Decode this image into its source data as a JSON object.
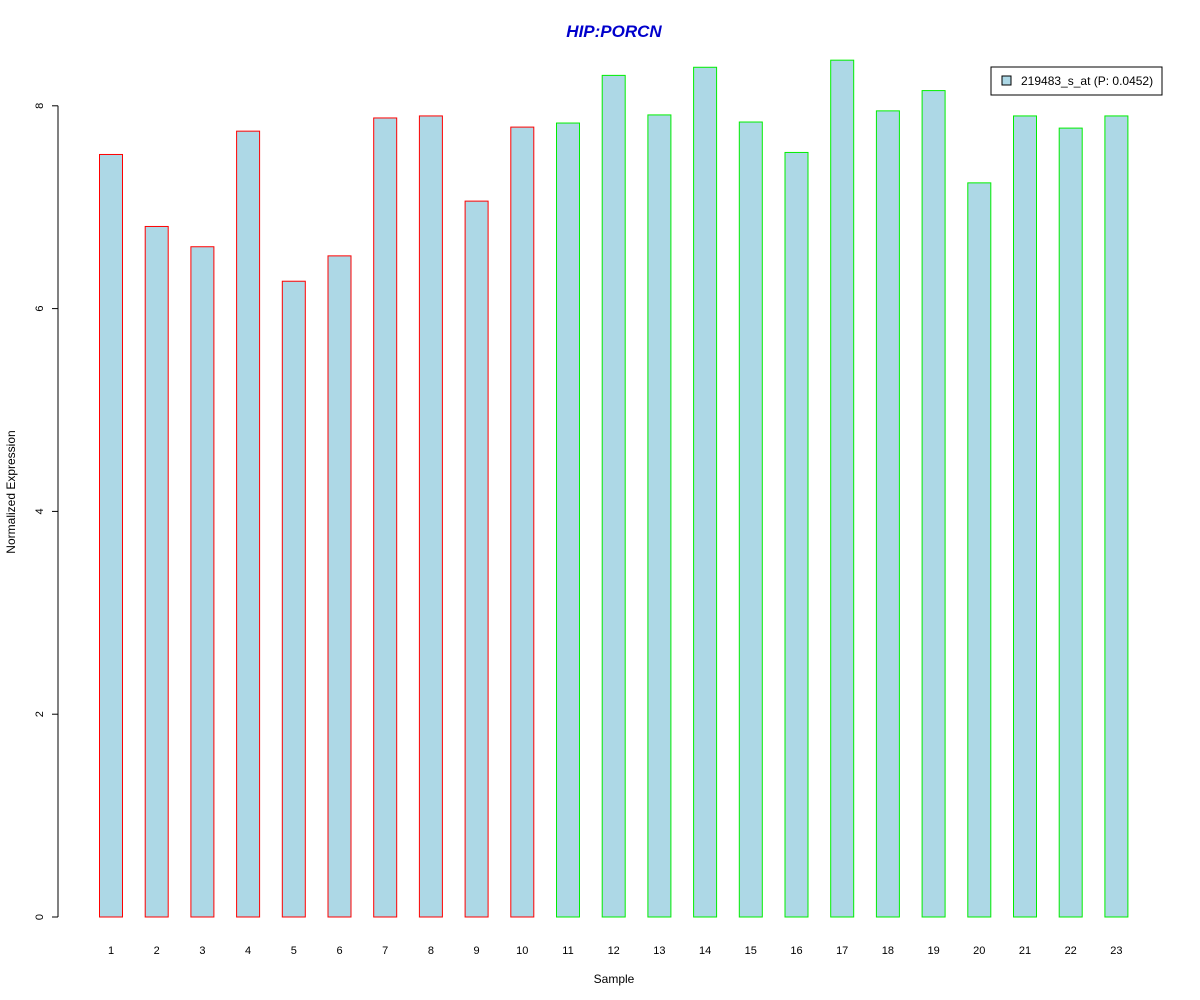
{
  "chart_data": {
    "type": "bar",
    "title": "HIP:PORCN",
    "xlabel": "Sample",
    "ylabel": "Normalized Expression",
    "ylim": [
      0,
      8.4
    ],
    "yticks": [
      0,
      2,
      4,
      6,
      8
    ],
    "categories": [
      "1",
      "2",
      "3",
      "4",
      "5",
      "6",
      "7",
      "8",
      "9",
      "10",
      "11",
      "12",
      "13",
      "14",
      "15",
      "16",
      "17",
      "18",
      "19",
      "20",
      "21",
      "22",
      "23"
    ],
    "series": [
      {
        "name": "219483_s_at (P: 0.0452)",
        "values": [
          7.52,
          6.81,
          6.61,
          7.75,
          6.27,
          6.52,
          7.88,
          7.9,
          7.06,
          7.79,
          7.83,
          8.3,
          7.91,
          8.38,
          7.84,
          7.54,
          8.45,
          7.95,
          8.15,
          7.24,
          7.9,
          7.78,
          7.9
        ]
      }
    ],
    "group_border": [
      "red",
      "red",
      "red",
      "red",
      "red",
      "red",
      "red",
      "red",
      "red",
      "red",
      "green",
      "green",
      "green",
      "green",
      "green",
      "green",
      "green",
      "green",
      "green",
      "green",
      "green",
      "green",
      "green"
    ],
    "grid": false,
    "legend_position": "top-right"
  },
  "colors": {
    "title": "#0000CC",
    "bar_fill": "#ADD8E6",
    "border_red": "#FF0000",
    "border_green": "#00EE00",
    "axis": "#000000"
  }
}
